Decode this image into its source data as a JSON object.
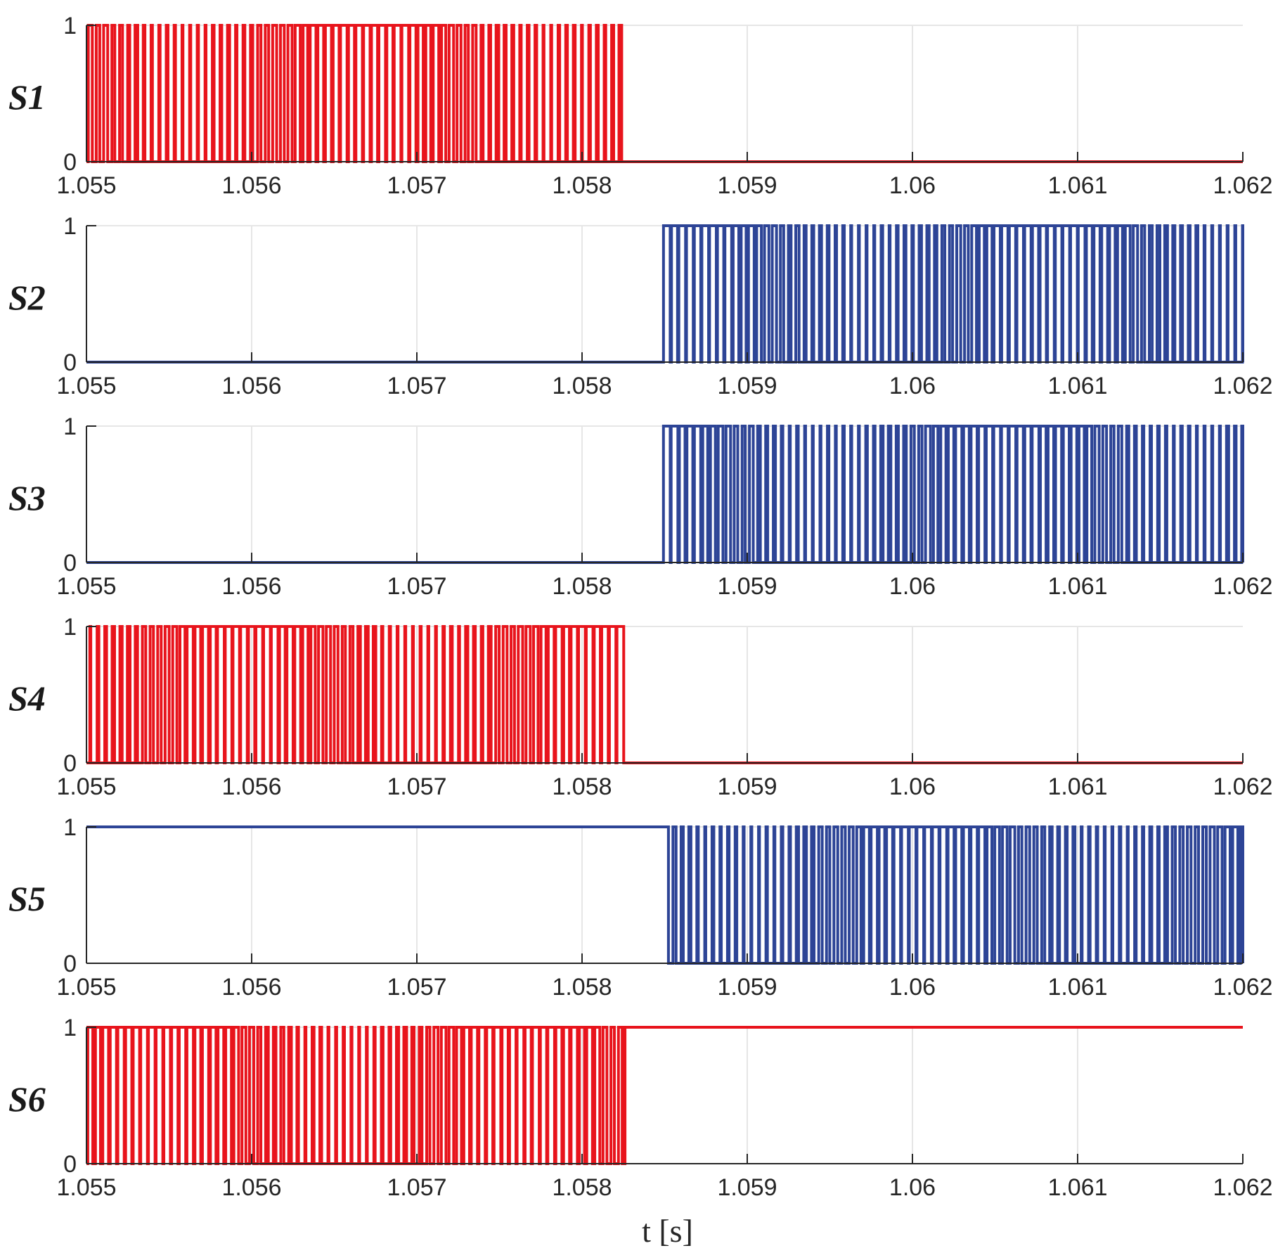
{
  "chart_data": {
    "type": "line",
    "step": true,
    "xlabel": "t [s]",
    "xlim": [
      1.055,
      1.062
    ],
    "ylim": [
      0,
      1
    ],
    "grid": true,
    "xticks": [
      "1.055",
      "1.056",
      "1.057",
      "1.058",
      "1.059",
      "1.06",
      "1.061",
      "1.062"
    ],
    "yticks": [
      "0",
      "1"
    ],
    "colors": {
      "red": "#e8141c",
      "blue": "#2d4496"
    },
    "subplots": [
      {
        "name": "S1",
        "color": "#e8141c",
        "base": 0,
        "active_range": [
          1.055,
          1.05826
        ],
        "after": 0,
        "description": "PWM switching between 0 and 1 until ~1.05826 s, then 0"
      },
      {
        "name": "S2",
        "color": "#2d4496",
        "base": 0,
        "active_range": [
          1.05849,
          1.062
        ],
        "after": 0,
        "description": "0 until ~1.05849 s, then PWM switching between 0 and 1"
      },
      {
        "name": "S3",
        "color": "#2d4496",
        "base": 0,
        "active_range": [
          1.05849,
          1.062
        ],
        "after": 0,
        "description": "0 until ~1.05849 s, then PWM switching between 0 and 1"
      },
      {
        "name": "S4",
        "color": "#e8141c",
        "base": 0,
        "active_range": [
          1.055,
          1.05826
        ],
        "after": 0,
        "description": "PWM switching between 0 and 1 until ~1.05826 s, then 0"
      },
      {
        "name": "S5",
        "color": "#2d4496",
        "base": 1,
        "active_range": [
          1.05849,
          1.062
        ],
        "after": 0,
        "description": "1 until ~1.05849 s, then PWM switching between 0 and 1"
      },
      {
        "name": "S6",
        "color": "#e8141c",
        "base": 1,
        "active_range": [
          1.055,
          1.05826
        ],
        "after": 1,
        "description": "PWM switching between 0 and 1 until ~1.05826 s, then 1"
      }
    ]
  }
}
